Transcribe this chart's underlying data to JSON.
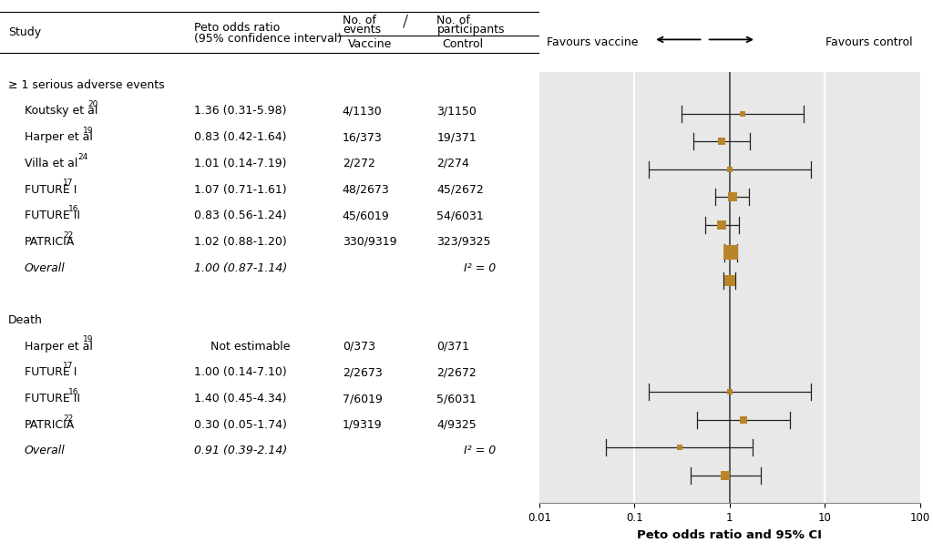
{
  "xlabel": "Peto odds ratio and 95% CI",
  "favours_vaccine": "Favours vaccine",
  "favours_control": "Favours control",
  "background_color": "#e8e8e8",
  "box_color": "#b8862a",
  "line_color": "#222222",
  "section1_label": "≥ 1 serious adverse events",
  "section2_label": "Death",
  "studies_sae": [
    {
      "label": "Koutsky et al",
      "superscript": "20",
      "or": 1.36,
      "ci_low": 0.31,
      "ci_high": 5.98,
      "vaccine": "4/1130",
      "control": "3/1150",
      "is_overall": false,
      "weight": 4
    },
    {
      "label": "Harper et al",
      "superscript": "19",
      "or": 0.83,
      "ci_low": 0.42,
      "ci_high": 1.64,
      "vaccine": "16/373",
      "control": "19/371",
      "is_overall": false,
      "weight": 8
    },
    {
      "label": "Villa et al",
      "superscript": "24",
      "or": 1.01,
      "ci_low": 0.14,
      "ci_high": 7.19,
      "vaccine": "2/272",
      "control": "2/274",
      "is_overall": false,
      "weight": 3
    },
    {
      "label": "FUTURE I",
      "superscript": "17",
      "or": 1.07,
      "ci_low": 0.71,
      "ci_high": 1.61,
      "vaccine": "48/2673",
      "control": "45/2672",
      "is_overall": false,
      "weight": 10
    },
    {
      "label": "FUTURE II",
      "superscript": "16",
      "or": 0.83,
      "ci_low": 0.56,
      "ci_high": 1.24,
      "vaccine": "45/6019",
      "control": "54/6031",
      "is_overall": false,
      "weight": 12
    },
    {
      "label": "PATRICIA",
      "superscript": "22",
      "or": 1.02,
      "ci_low": 0.88,
      "ci_high": 1.2,
      "vaccine": "330/9319",
      "control": "323/9325",
      "is_overall": false,
      "weight": 18
    },
    {
      "label": "Overall",
      "superscript": "",
      "or": 1.0,
      "ci_low": 0.87,
      "ci_high": 1.14,
      "vaccine": "",
      "control": "I² = 0",
      "is_overall": true,
      "weight": 14
    }
  ],
  "studies_death": [
    {
      "label": "Harper et al",
      "superscript": "19",
      "or": null,
      "ci_low": null,
      "ci_high": null,
      "vaccine": "0/373",
      "control": "0/371",
      "is_overall": false,
      "not_estimable": true,
      "weight": 0
    },
    {
      "label": "FUTURE I",
      "superscript": "17",
      "or": 1.0,
      "ci_low": 0.14,
      "ci_high": 7.1,
      "vaccine": "2/2673",
      "control": "2/2672",
      "is_overall": false,
      "weight": 6
    },
    {
      "label": "FUTURE II",
      "superscript": "16",
      "or": 1.4,
      "ci_low": 0.45,
      "ci_high": 4.34,
      "vaccine": "7/6019",
      "control": "5/6031",
      "is_overall": false,
      "weight": 8
    },
    {
      "label": "PATRICIA",
      "superscript": "22",
      "or": 0.3,
      "ci_low": 0.05,
      "ci_high": 1.74,
      "vaccine": "1/9319",
      "control": "4/9325",
      "is_overall": false,
      "weight": 7
    },
    {
      "label": "Overall",
      "superscript": "",
      "or": 0.91,
      "ci_low": 0.39,
      "ci_high": 2.14,
      "vaccine": "",
      "control": "I² = 0",
      "is_overall": true,
      "weight": 10
    }
  ],
  "xlim": [
    0.01,
    100
  ],
  "xticks": [
    0.01,
    0.1,
    1,
    10,
    100
  ],
  "xtick_labels": [
    "0.01",
    "0.1",
    "1",
    "10",
    "100"
  ],
  "vline_x": [
    0.1,
    10
  ],
  "ref_line_x": 1.0
}
